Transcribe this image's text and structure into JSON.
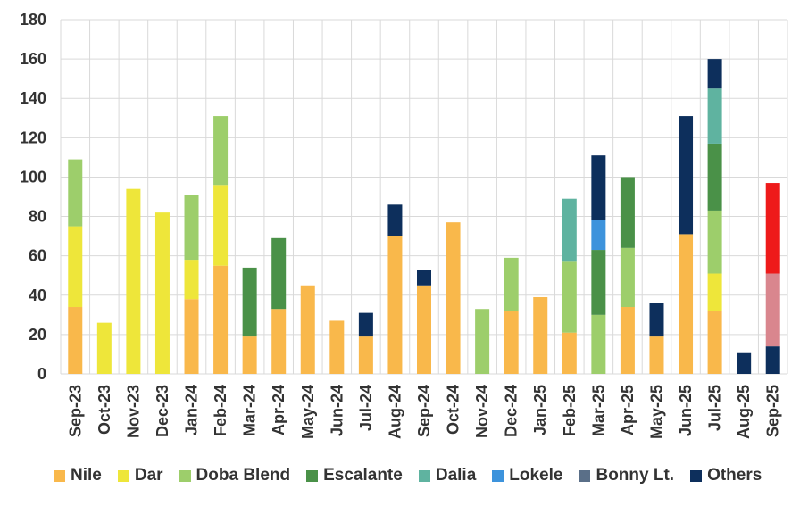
{
  "chart_data": {
    "type": "bar",
    "stacked": true,
    "title": "",
    "xlabel": "",
    "ylabel": "",
    "ylim": [
      0,
      180
    ],
    "yticks": [
      0,
      20,
      40,
      60,
      80,
      100,
      120,
      140,
      160,
      180
    ],
    "grid": true,
    "legend_position": "bottom",
    "categories": [
      "Sep-23",
      "Oct-23",
      "Nov-23",
      "Dec-23",
      "Jan-24",
      "Feb-24",
      "Mar-24",
      "Apr-24",
      "May-24",
      "Jun-24",
      "Jul-24",
      "Aug-24",
      "Sep-24",
      "Oct-24",
      "Nov-24",
      "Dec-24",
      "Jan-25",
      "Feb-25",
      "Mar-25",
      "Apr-25",
      "May-25",
      "Jun-25",
      "Jul-25",
      "Aug-25",
      "Sep-25"
    ],
    "series": [
      {
        "name": "Nile",
        "color": "#F9B84B",
        "values": [
          34,
          0,
          0,
          0,
          38,
          55,
          19,
          33,
          45,
          27,
          19,
          70,
          45,
          77,
          0,
          32,
          39,
          21,
          0,
          34,
          19,
          71,
          32,
          0,
          0
        ]
      },
      {
        "name": "Dar",
        "color": "#EEE63A",
        "values": [
          41,
          26,
          94,
          82,
          20,
          41,
          0,
          0,
          0,
          0,
          0,
          0,
          0,
          0,
          0,
          0,
          0,
          0,
          0,
          0,
          0,
          0,
          19,
          0,
          0
        ]
      },
      {
        "name": "Doba Blend",
        "color": "#9DCE6B",
        "values": [
          34,
          0,
          0,
          0,
          33,
          35,
          0,
          0,
          0,
          0,
          0,
          0,
          0,
          0,
          33,
          27,
          0,
          36,
          30,
          30,
          0,
          0,
          32,
          0,
          0
        ]
      },
      {
        "name": "Escalante",
        "color": "#4A9148",
        "values": [
          0,
          0,
          0,
          0,
          0,
          0,
          35,
          36,
          0,
          0,
          0,
          0,
          0,
          0,
          0,
          0,
          0,
          0,
          33,
          36,
          0,
          0,
          34,
          0,
          0
        ]
      },
      {
        "name": "Dalia",
        "color": "#5FB3A0",
        "values": [
          0,
          0,
          0,
          0,
          0,
          0,
          0,
          0,
          0,
          0,
          0,
          0,
          0,
          0,
          0,
          0,
          0,
          32,
          0,
          0,
          0,
          0,
          28,
          0,
          0
        ]
      },
      {
        "name": "Lokele",
        "color": "#3D93DC",
        "values": [
          0,
          0,
          0,
          0,
          0,
          0,
          0,
          0,
          0,
          0,
          0,
          0,
          0,
          0,
          0,
          0,
          0,
          0,
          15,
          0,
          0,
          0,
          0,
          0,
          0
        ]
      },
      {
        "name": "Bonny Lt.",
        "color": "#5A6F88",
        "values": [
          0,
          0,
          0,
          0,
          0,
          0,
          0,
          0,
          0,
          0,
          0,
          0,
          0,
          0,
          0,
          0,
          0,
          0,
          0,
          0,
          0,
          0,
          0,
          0,
          0
        ]
      },
      {
        "name": "Others",
        "color": "#0D2F5C",
        "values": [
          0,
          0,
          0,
          0,
          0,
          0,
          0,
          0,
          0,
          0,
          12,
          16,
          8,
          0,
          0,
          0,
          0,
          0,
          33,
          0,
          17,
          60,
          15,
          11,
          14
        ]
      },
      {
        "name": "",
        "color": "#D9868E",
        "values": [
          0,
          0,
          0,
          0,
          0,
          0,
          0,
          0,
          0,
          0,
          0,
          0,
          0,
          0,
          0,
          0,
          0,
          0,
          0,
          0,
          0,
          0,
          0,
          0,
          37
        ]
      },
      {
        "name": "",
        "color": "#EE1A1A",
        "values": [
          0,
          0,
          0,
          0,
          0,
          0,
          0,
          0,
          0,
          0,
          0,
          0,
          0,
          0,
          0,
          0,
          0,
          0,
          0,
          0,
          0,
          0,
          0,
          0,
          46
        ]
      }
    ]
  },
  "legend": [
    {
      "label": "Nile",
      "color": "#F9B84B"
    },
    {
      "label": "Dar",
      "color": "#EEE63A"
    },
    {
      "label": "Doba Blend",
      "color": "#9DCE6B"
    },
    {
      "label": "Escalante",
      "color": "#4A9148"
    },
    {
      "label": "Dalia",
      "color": "#5FB3A0"
    },
    {
      "label": "Lokele",
      "color": "#3D93DC"
    },
    {
      "label": "Bonny Lt.",
      "color": "#5A6F88"
    },
    {
      "label": "Others",
      "color": "#0D2F5C"
    }
  ]
}
